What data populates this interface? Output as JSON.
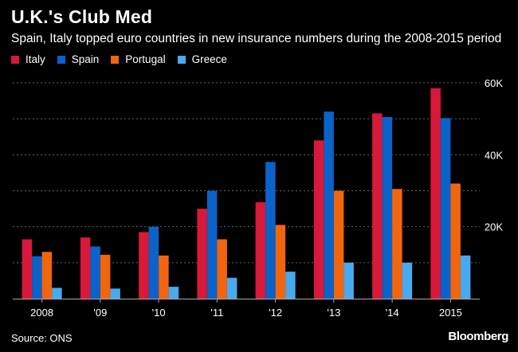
{
  "title": "U.K.'s Club Med",
  "subtitle": "Spain, Italy topped euro countries in new insurance numbers during the 2008-2015 period",
  "source": "Source: ONS",
  "brand": "Bloomberg",
  "colors": {
    "background": "#000000",
    "text": "#ffffff",
    "grid": "#666666",
    "axis": "#aaaaaa",
    "Italy": "#d8193a",
    "Spain": "#0b62c9",
    "Portugal": "#f2650f",
    "Greece": "#49a9ef"
  },
  "chart_data": {
    "type": "bar",
    "title": "U.K.'s Club Med",
    "subtitle": "Spain, Italy topped euro countries in new insurance numbers during the 2008-2015 period",
    "xlabel": "",
    "ylabel": "",
    "categories": [
      "2008",
      "'09",
      "'10",
      "'11",
      "'12",
      "'13",
      "'14",
      "2015"
    ],
    "ylim": [
      0,
      60000
    ],
    "yticks": [
      20000,
      40000,
      60000
    ],
    "ytick_labels": [
      "20K",
      "40K",
      "60K"
    ],
    "y_axis_side": "right",
    "grid": true,
    "legend_position": "top-left",
    "series": [
      {
        "name": "Italy",
        "values": [
          16500,
          17000,
          18500,
          25000,
          26800,
          44000,
          51500,
          58500
        ]
      },
      {
        "name": "Spain",
        "values": [
          11800,
          14500,
          20000,
          30000,
          38000,
          52000,
          50500,
          50200
        ]
      },
      {
        "name": "Portugal",
        "values": [
          13000,
          12200,
          12000,
          16500,
          20500,
          30000,
          30500,
          32000
        ]
      },
      {
        "name": "Greece",
        "values": [
          3000,
          2800,
          3300,
          5800,
          7500,
          10000,
          10000,
          12000
        ]
      }
    ]
  }
}
